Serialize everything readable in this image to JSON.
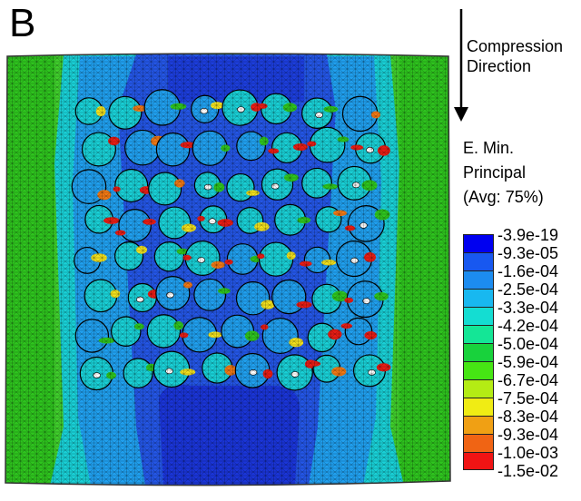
{
  "panel_label": "B",
  "direction_label": "Compression\nDirection",
  "legend": {
    "title": "E. Min.\nPrincipal\n(Avg: 75%)",
    "ticks": [
      "-3.9e-19",
      "-9.3e-05",
      "-1.6e-04",
      "-2.5e-04",
      "-3.3e-04",
      "-4.2e-04",
      "-5.0e-04",
      "-5.9e-04",
      "-6.7e-04",
      "-7.5e-04",
      "-8.3e-04",
      "-9.3e-04",
      "-1.0e-03",
      "-1.5e-02"
    ],
    "colors": [
      "#0000f0",
      "#1858f0",
      "#1c8cf0",
      "#18b8f0",
      "#14ddd2",
      "#14e696",
      "#18d23c",
      "#46e614",
      "#b4ec14",
      "#f0ec14",
      "#f0a014",
      "#f06414",
      "#f01414"
    ]
  },
  "figure": {
    "colors": {
      "green": "#2ec41e",
      "light_green": "#52d83a",
      "cyan": "#19d0d6",
      "light_blue": "#20a0ef",
      "blue": "#2456e6",
      "dark_blue": "#1a35d8",
      "red": "#e81c14",
      "orange": "#f07814",
      "yellow": "#f2e01c"
    }
  }
}
